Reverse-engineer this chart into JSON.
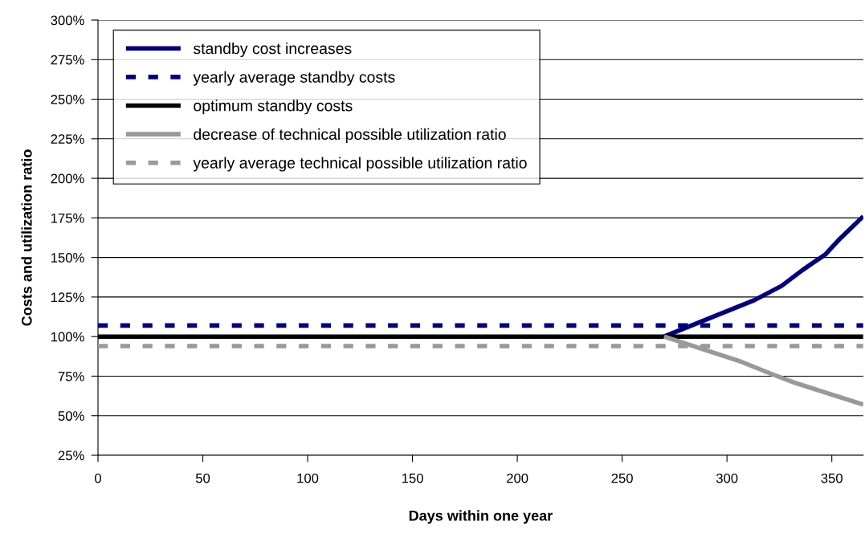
{
  "chart_data": {
    "type": "line",
    "xlabel": "Days within one year",
    "ylabel": "Costs and utilization ratio",
    "xlim": [
      0,
      365
    ],
    "xticks": [
      0,
      50,
      100,
      150,
      200,
      250,
      300,
      350
    ],
    "ylim": [
      25,
      300
    ],
    "yticks": [
      {
        "value": 25,
        "label": "25%"
      },
      {
        "value": 50,
        "label": "50%"
      },
      {
        "value": 75,
        "label": "75%"
      },
      {
        "value": 100,
        "label": "100%"
      },
      {
        "value": 125,
        "label": "125%"
      },
      {
        "value": 150,
        "label": "150%"
      },
      {
        "value": 175,
        "label": "175%"
      },
      {
        "value": 200,
        "label": "200%"
      },
      {
        "value": 225,
        "label": "225%"
      },
      {
        "value": 250,
        "label": "250%"
      },
      {
        "value": 275,
        "label": "275%"
      },
      {
        "value": 300,
        "label": "300%"
      }
    ],
    "grid": "y",
    "legend": "top left",
    "marker": "none",
    "series": [
      {
        "name": "standby cost increases",
        "color": "#000080",
        "line_style": "solid",
        "x": [
          270,
          298,
          313,
          326,
          336,
          347,
          354,
          365
        ],
        "values": [
          100,
          115,
          123,
          132,
          142,
          152,
          162,
          176
        ]
      },
      {
        "name": "yearly average standby costs",
        "color": "#000080",
        "line_style": "dashed",
        "x": [
          0,
          365
        ],
        "values": [
          107,
          107
        ]
      },
      {
        "name": "optimum standby costs",
        "color": "#000000",
        "line_style": "solid",
        "x": [
          0,
          365
        ],
        "values": [
          100,
          100
        ]
      },
      {
        "name": "decrease of technical possible utilization ratio",
        "color": "#999999",
        "line_style": "solid",
        "x": [
          270,
          307,
          322,
          332,
          365
        ],
        "values": [
          100,
          84,
          76,
          71,
          57
        ]
      },
      {
        "name": "yearly average technical possible utilization ratio",
        "color": "#999999",
        "line_style": "dashed",
        "x": [
          0,
          365
        ],
        "values": [
          94,
          94
        ]
      }
    ]
  }
}
